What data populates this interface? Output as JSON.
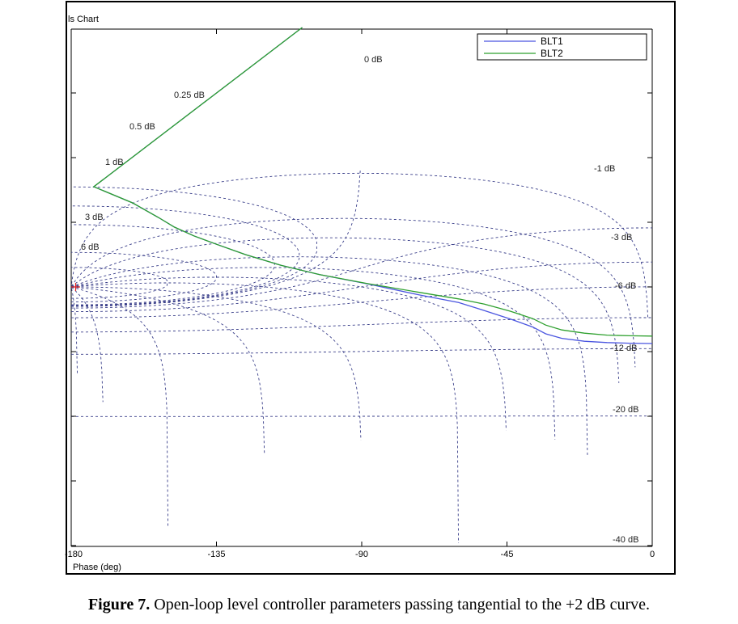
{
  "chart_data": {
    "type": "line",
    "window_title": "ls Chart",
    "xlabel": "Phase (deg)",
    "ylabel": "",
    "xlim": [
      -180,
      0
    ],
    "x_ticks": [
      {
        "value": -180,
        "label": "-180"
      },
      {
        "value": -135,
        "label": "-135"
      },
      {
        "value": -90,
        "label": "-90"
      },
      {
        "value": -45,
        "label": "-45"
      },
      {
        "value": 0,
        "label": "0"
      }
    ],
    "grid": true,
    "grid_labels": [
      "0 dB",
      "0.25 dB",
      "0.5 dB",
      "1 dB",
      "3 dB",
      "6 dB",
      "-1 dB",
      "-3 dB",
      "-6 dB",
      "-12 dB",
      "-20 dB",
      "-40 dB"
    ],
    "legend_placement": "top-right",
    "series": [
      {
        "name": "BLT1",
        "color": "#4a55e0",
        "x": [
          -173,
          -161,
          -153,
          -148,
          -142,
          -135,
          -126,
          -115,
          -103,
          -88,
          -72,
          -60,
          -52,
          -44,
          -37,
          -33,
          -28,
          -21,
          -14,
          -7,
          0
        ],
        "y": [
          31.0,
          26.0,
          21.5,
          18.5,
          15.8,
          13.2,
          10.0,
          6.7,
          3.8,
          0.9,
          -2.5,
          -4.8,
          -7.3,
          -9.9,
          -12.4,
          -14.5,
          -15.9,
          -16.8,
          -17.2,
          -17.4,
          -17.5
        ]
      },
      {
        "name": "BLT2",
        "color": "#2ea02e",
        "x": [
          -173,
          -161,
          -153,
          -148,
          -142,
          -135,
          -126,
          -115,
          -103,
          -88,
          -72,
          -60,
          -52,
          -44,
          -37,
          -33,
          -28,
          -21,
          -14,
          -7,
          0
        ],
        "y": [
          31.0,
          26.0,
          21.5,
          18.5,
          15.8,
          13.2,
          10.0,
          6.7,
          3.8,
          1.0,
          -1.7,
          -3.7,
          -5.3,
          -7.5,
          -9.8,
          -11.8,
          -13.3,
          -14.3,
          -14.9,
          -15.1,
          -15.2
        ]
      }
    ]
  },
  "caption": {
    "label": "Figure 7.",
    "text": " Open-loop level controller parameters passing tangential to the +2 dB curve."
  }
}
